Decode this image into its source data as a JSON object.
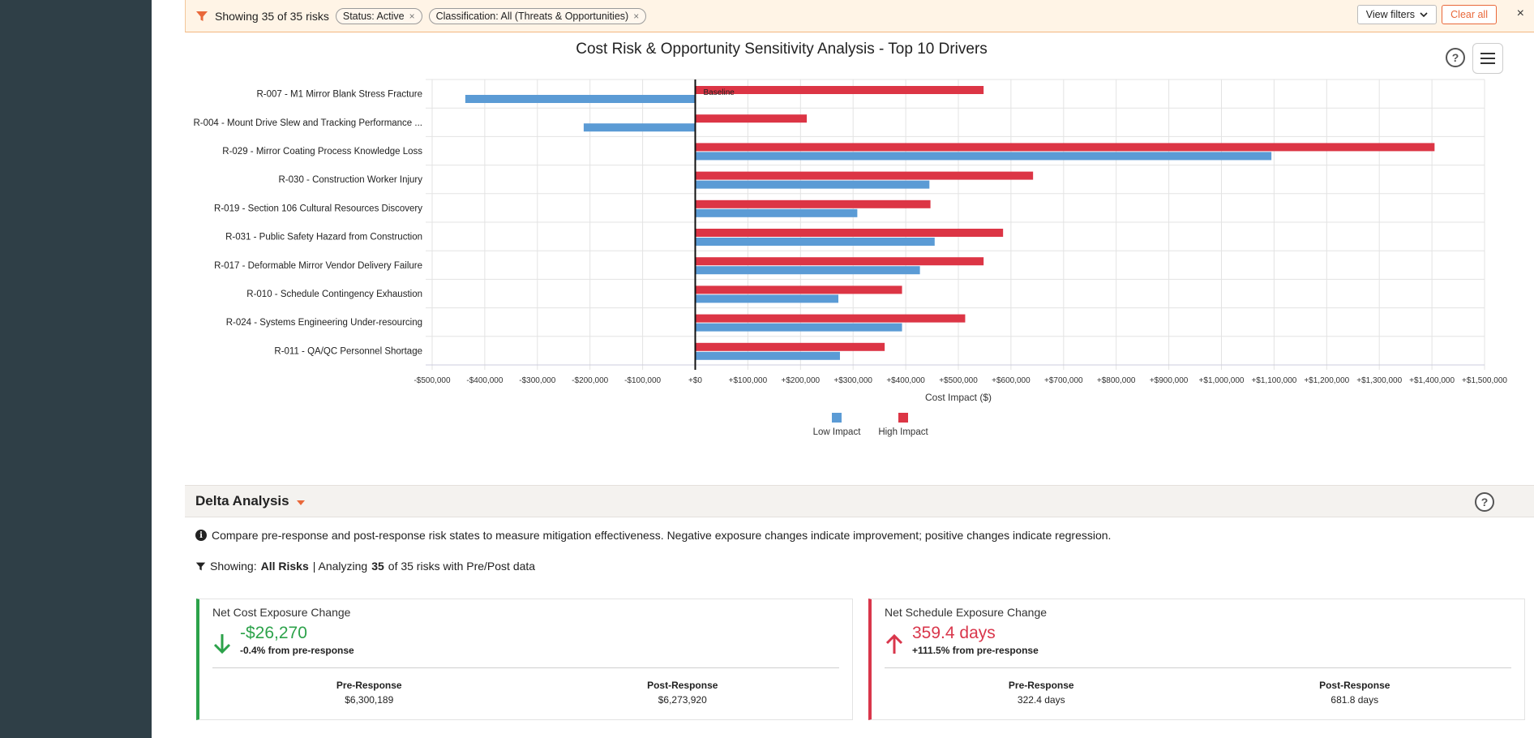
{
  "filter_bar": {
    "count_text": "Showing 35 of 35 risks",
    "chips": [
      "Status: Active",
      "Classification: All (Threats & Opportunities)"
    ],
    "chip_close": "×",
    "view_filters_label": "View filters",
    "clear_all_label": "Clear all",
    "close_label": "×"
  },
  "chart": {
    "help_label": "?"
  },
  "chart_data": {
    "type": "bar",
    "title": "Cost Risk & Opportunity Sensitivity Analysis - Top 10 Drivers",
    "xlabel": "Cost Impact ($)",
    "orientation": "horizontal",
    "xlim": [
      -500000,
      1500000
    ],
    "x_ticks": [
      "-$500,000",
      "-$400,000",
      "-$300,000",
      "-$200,000",
      "-$100,000",
      "+$0",
      "+$100,000",
      "+$200,000",
      "+$300,000",
      "+$400,000",
      "+$500,000",
      "+$600,000",
      "+$700,000",
      "+$800,000",
      "+$900,000",
      "+$1,000,000",
      "+$1,100,000",
      "+$1,200,000",
      "+$1,300,000",
      "+$1,400,000",
      "+$1,500,000"
    ],
    "baseline_label": "Baseline",
    "legend_position": "bottom",
    "grid": true,
    "categories": [
      "R-007 - M1 Mirror Blank Stress Fracture",
      "R-004 - Mount Drive Slew and Tracking Performance ...",
      "R-029 - Mirror Coating Process Knowledge Loss",
      "R-030 - Construction Worker Injury",
      "R-019 - Section 106 Cultural Resources Discovery",
      "R-031 - Public Safety Hazard from Construction",
      "R-017 - Deformable Mirror Vendor Delivery Failure",
      "R-010 - Schedule Contingency Exhaustion",
      "R-024 - Systems Engineering Under-resourcing",
      "R-011 - QA/QC Personnel Shortage"
    ],
    "series": [
      {
        "name": "High Impact",
        "color": "#dc3545",
        "values": [
          548000,
          212000,
          1405000,
          642000,
          447000,
          585000,
          548000,
          393000,
          513000,
          360000
        ]
      },
      {
        "name": "Low Impact",
        "color": "#5b9bd5",
        "values": [
          -437000,
          -212000,
          1095000,
          445000,
          308000,
          455000,
          427000,
          272000,
          393000,
          275000
        ]
      }
    ]
  },
  "delta": {
    "title": "Delta Analysis",
    "help_label": "?",
    "info_text": "Compare pre-response and post-response risk states to measure mitigation effectiveness. Negative exposure changes indicate improvement; positive changes indicate regression.",
    "showing": {
      "prefix": "Showing:",
      "filter": "All Risks",
      "mid": "| Analyzing",
      "count": "35",
      "suffix": "of 35 risks with Pre/Post data"
    },
    "cost_card": {
      "label": "Net Cost Exposure Change",
      "value": "-$26,270",
      "sub": "-0.4% from pre-response",
      "pre_label": "Pre-Response",
      "pre_value": "$6,300,189",
      "post_label": "Post-Response",
      "post_value": "$6,273,920",
      "arrow": "arrow-down-icon",
      "color": "#2ca24a"
    },
    "schedule_card": {
      "label": "Net Schedule Exposure Change",
      "value": "359.4 days",
      "sub": "+111.5% from pre-response",
      "pre_label": "Pre-Response",
      "pre_value": "322.4 days",
      "post_label": "Post-Response",
      "post_value": "681.8 days",
      "arrow": "arrow-up-icon",
      "color": "#d9364b"
    }
  }
}
